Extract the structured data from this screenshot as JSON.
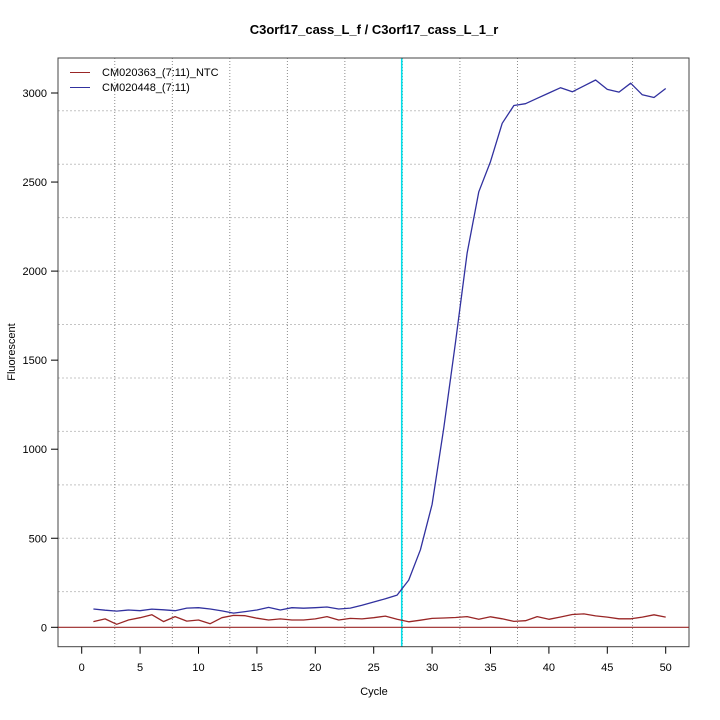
{
  "title": "C3orf17_cass_L_f / C3orf17_cass_L_1_r",
  "colors": {
    "ntc_red": "#992626",
    "sample_blue": "#31319F",
    "threshold_cyan": "#00E0EA",
    "grid_h": "#C4C4C4",
    "grid_v": "#8C8C8C",
    "box": "#444444",
    "baseline_red": "#992626"
  },
  "chart_data": {
    "type": "line",
    "title": "C3orf17_cass_L_f / C3orf17_cass_L_1_r",
    "xlabel": "Cycle",
    "ylabel": "Fluorescent",
    "xlim": [
      -2.1,
      52.0
    ],
    "ylim": [
      -110,
      3196
    ],
    "x_ticks": [
      0,
      5,
      10,
      15,
      20,
      25,
      30,
      35,
      40,
      45,
      50
    ],
    "y_ticks": [
      0,
      500,
      1000,
      1500,
      2000,
      2500,
      3000
    ],
    "grid": {
      "style": "dotted",
      "v_x": [
        2.83,
        7.76,
        12.68,
        17.61,
        22.53,
        27.46,
        32.38,
        37.31,
        42.23,
        47.16
      ],
      "h_y": [
        200,
        500,
        800,
        1100,
        1400,
        1700,
        2000,
        2300,
        2600,
        2900
      ]
    },
    "threshold_cycle": 27.4,
    "baseline_y": 0,
    "x": [
      1,
      2,
      3,
      4,
      5,
      6,
      7,
      8,
      9,
      10,
      11,
      12,
      13,
      14,
      15,
      16,
      17,
      18,
      19,
      20,
      21,
      22,
      23,
      24,
      25,
      26,
      27,
      28,
      29,
      30,
      31,
      32,
      33,
      34,
      35,
      36,
      37,
      38,
      39,
      40,
      41,
      42,
      43,
      44,
      45,
      46,
      47,
      48,
      49,
      50
    ],
    "series": [
      {
        "name": "CM020363_(7:11)_NTC",
        "color": "#992626",
        "values": [
          32,
          47,
          17,
          41,
          54,
          71,
          32,
          60,
          35,
          41,
          20,
          54,
          67,
          65,
          51,
          41,
          47,
          41,
          41,
          47,
          60,
          41,
          50,
          47,
          54,
          63,
          45,
          31,
          40,
          50,
          52,
          55,
          60,
          45,
          59,
          48,
          33,
          37,
          60,
          45,
          58,
          72,
          75,
          64,
          57,
          48,
          48,
          57,
          70,
          57
        ]
      },
      {
        "name": "CM020448_(7:11)",
        "color": "#31319F",
        "values": [
          103,
          96,
          91,
          97,
          93,
          102,
          98,
          93,
          108,
          110,
          103,
          92,
          80,
          88,
          97,
          112,
          97,
          110,
          107,
          110,
          114,
          103,
          108,
          124,
          142,
          160,
          181,
          265,
          435,
          690,
          1120,
          1600,
          2100,
          2445,
          2615,
          2830,
          2930,
          2940,
          2970,
          3000,
          3030,
          3007,
          3040,
          3073,
          3020,
          3005,
          3055,
          2990,
          2975,
          3025
        ]
      }
    ],
    "legend_position": "top-left",
    "legend": [
      "CM020363_(7:11)_NTC",
      "CM020448_(7:11)"
    ]
  }
}
